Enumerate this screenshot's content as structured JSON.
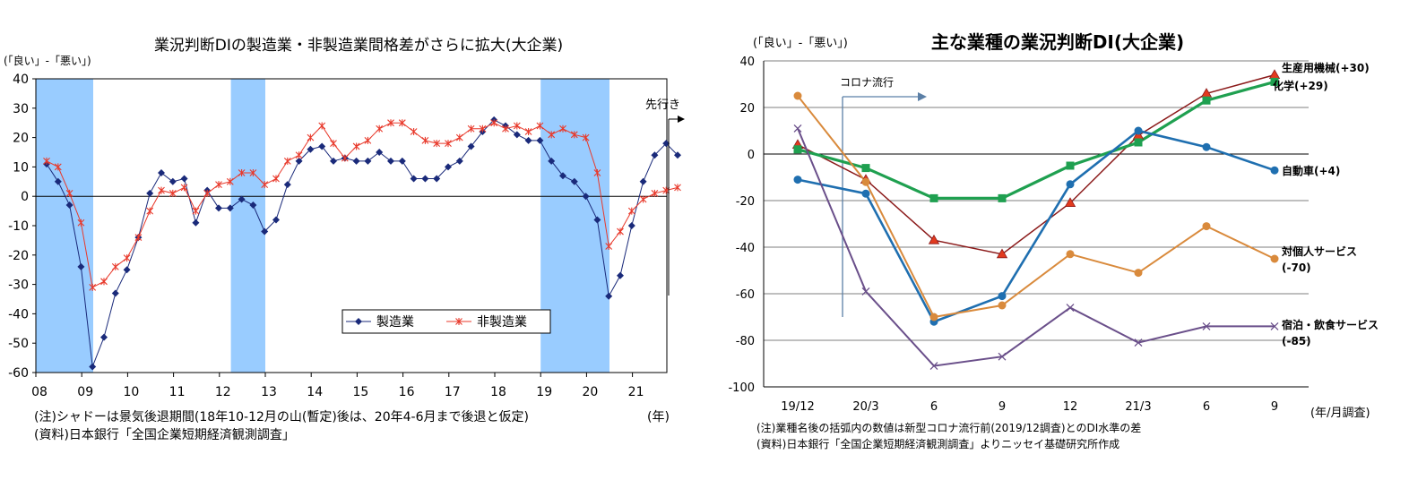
{
  "chart_data": [
    {
      "type": "line",
      "title": "業況判断DIの製造業・非製造業間格差がさらに拡大(大企業)",
      "ylabel": "(「良い」-「悪い」)",
      "xlabel": "(年)",
      "ylim": [
        -60,
        40
      ],
      "yticks": [
        "40",
        "30",
        "20",
        "10",
        "0",
        "-10",
        "-20",
        "-30",
        "-40",
        "-50",
        "-60"
      ],
      "xticks": [
        "08",
        "09",
        "10",
        "11",
        "12",
        "13",
        "14",
        "15",
        "16",
        "17",
        "18",
        "19",
        "20",
        "21"
      ],
      "x_start": 2008.0,
      "x_step": 0.25,
      "shaded_periods": [
        [
          2008.0,
          2009.25
        ],
        [
          2012.25,
          2013.0
        ],
        [
          2019.0,
          2020.5
        ]
      ],
      "annotation": "先行き",
      "note": "(注)シャドーは景気後退期間(18年10-12月の山(暫定)後は、20年4-6月まで後退と仮定)",
      "source": "(資料)日本銀行「全国企業短期経済観測調査」",
      "legend": "center-right",
      "series": [
        {
          "name": "製造業",
          "color": "#1a2a7a",
          "marker": "diamond",
          "values": [
            11,
            5,
            -3,
            -24,
            -58,
            -48,
            -33,
            -25,
            -14,
            1,
            8,
            5,
            6,
            -9,
            2,
            -4,
            -4,
            -1,
            -3,
            -12,
            -8,
            4,
            12,
            16,
            17,
            12,
            13,
            12,
            12,
            15,
            12,
            12,
            6,
            6,
            6,
            10,
            12,
            17,
            22,
            26,
            24,
            21,
            19,
            19,
            12,
            7,
            5,
            0,
            -8,
            -34,
            -27,
            -10,
            5,
            14,
            18,
            14
          ]
        },
        {
          "name": "非製造業",
          "color": "#e8392b",
          "marker": "star",
          "values": [
            12,
            10,
            1,
            -9,
            -31,
            -29,
            -24,
            -21,
            -14,
            -5,
            2,
            1,
            3,
            -5,
            1,
            4,
            5,
            8,
            8,
            4,
            6,
            12,
            14,
            20,
            24,
            18,
            13,
            17,
            19,
            23,
            25,
            25,
            22,
            19,
            18,
            18,
            20,
            23,
            23,
            25,
            23,
            24,
            22,
            24,
            21,
            23,
            21,
            20,
            8,
            -17,
            -12,
            -5,
            -1,
            1,
            2,
            3
          ]
        }
      ]
    },
    {
      "type": "line",
      "title": "主な業種の業況判断DI(大企業)",
      "ylabel": "(「良い」-「悪い」)",
      "xlabel": "(年/月調査)",
      "ylim": [
        -100,
        40
      ],
      "yticks": [
        "40",
        "20",
        "0",
        "-20",
        "-40",
        "-60",
        "-80",
        "-100"
      ],
      "categories": [
        "19/12",
        "20/3",
        "6",
        "9",
        "12",
        "21/3",
        "6",
        "9"
      ],
      "annotation": "コロナ流行",
      "note": "(注)業種名後の括弧内の数値は新型コロナ流行前(2019/12調査)とのDI水準の差",
      "source": "(資料)日本銀行「全国企業短期経済観測調査」よりニッセイ基礎研究所作成",
      "series": [
        {
          "name": "生産用機械",
          "diff": "(+30)",
          "color": "#8b1a1a",
          "marker": "triangle",
          "values": [
            4,
            -11,
            -37,
            -43,
            -21,
            8,
            26,
            34
          ]
        },
        {
          "name": "化学",
          "diff": "(+29)",
          "color": "#1fa050",
          "marker": "square",
          "values": [
            2,
            -6,
            -19,
            -19,
            -5,
            5,
            23,
            31
          ]
        },
        {
          "name": "自動車",
          "diff": "(+4)",
          "color": "#1f6fb0",
          "marker": "circle",
          "values": [
            -11,
            -17,
            -72,
            -61,
            -13,
            10,
            3,
            -7
          ]
        },
        {
          "name": "対個人サービス",
          "diff": "(-70)",
          "color": "#d98a3c",
          "marker": "circle",
          "values": [
            25,
            -12,
            -70,
            -65,
            -43,
            -51,
            -31,
            -45
          ]
        },
        {
          "name": "宿泊・飲食サービス",
          "diff": "(-85)",
          "color": "#6a4f8a",
          "marker": "x",
          "values": [
            11,
            -59,
            -91,
            -87,
            -66,
            -81,
            -74,
            -74
          ]
        }
      ]
    }
  ]
}
